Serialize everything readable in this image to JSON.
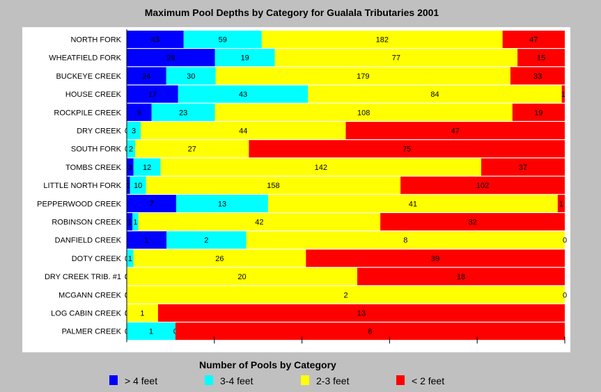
{
  "chart_data": {
    "type": "bar",
    "orientation": "horizontal",
    "stacked": "percent",
    "title": "Maximum Pool Depths by Category for Gualala Tributaries 2001",
    "legend_title": "Number of Pools by Category",
    "legend_position": "bottom",
    "categories": [
      "NORTH FORK",
      "WHEATFIELD FORK",
      "BUCKEYE CREEK",
      "HOUSE CREEK",
      "ROCKPILE CREEK",
      "DRY CREEK",
      "SOUTH FORK",
      "TOMBS CREEK",
      "LITTLE NORTH FORK",
      "PEPPERWOOD CREEK",
      "ROBINSON CREEK",
      "DANFIELD CREEK",
      "DOTY CREEK",
      "DRY CREEK TRIB. #1",
      "MCGANN CREEK",
      "LOG CABIN CREEK",
      "PALMER CREEK"
    ],
    "series": [
      {
        "name": "> 4 feet",
        "color": "#0000ff",
        "values": [
          43,
          28,
          24,
          17,
          9,
          0,
          0,
          3,
          2,
          7,
          1,
          1,
          0,
          0,
          0,
          0,
          0
        ]
      },
      {
        "name": "3-4 feet",
        "color": "#00ffff",
        "values": [
          59,
          19,
          30,
          43,
          23,
          3,
          2,
          12,
          10,
          13,
          1,
          2,
          1,
          0,
          0,
          0,
          1
        ]
      },
      {
        "name": "2-3 feet",
        "color": "#ffff00",
        "values": [
          182,
          77,
          179,
          84,
          108,
          44,
          27,
          142,
          158,
          41,
          42,
          8,
          26,
          20,
          2,
          1,
          0
        ]
      },
      {
        "name": "< 2 feet",
        "color": "#ff0000",
        "values": [
          47,
          15,
          33,
          1,
          19,
          47,
          75,
          37,
          102,
          1,
          32,
          0,
          39,
          18,
          0,
          13,
          8
        ]
      }
    ],
    "xlim": [
      0,
      100
    ]
  }
}
